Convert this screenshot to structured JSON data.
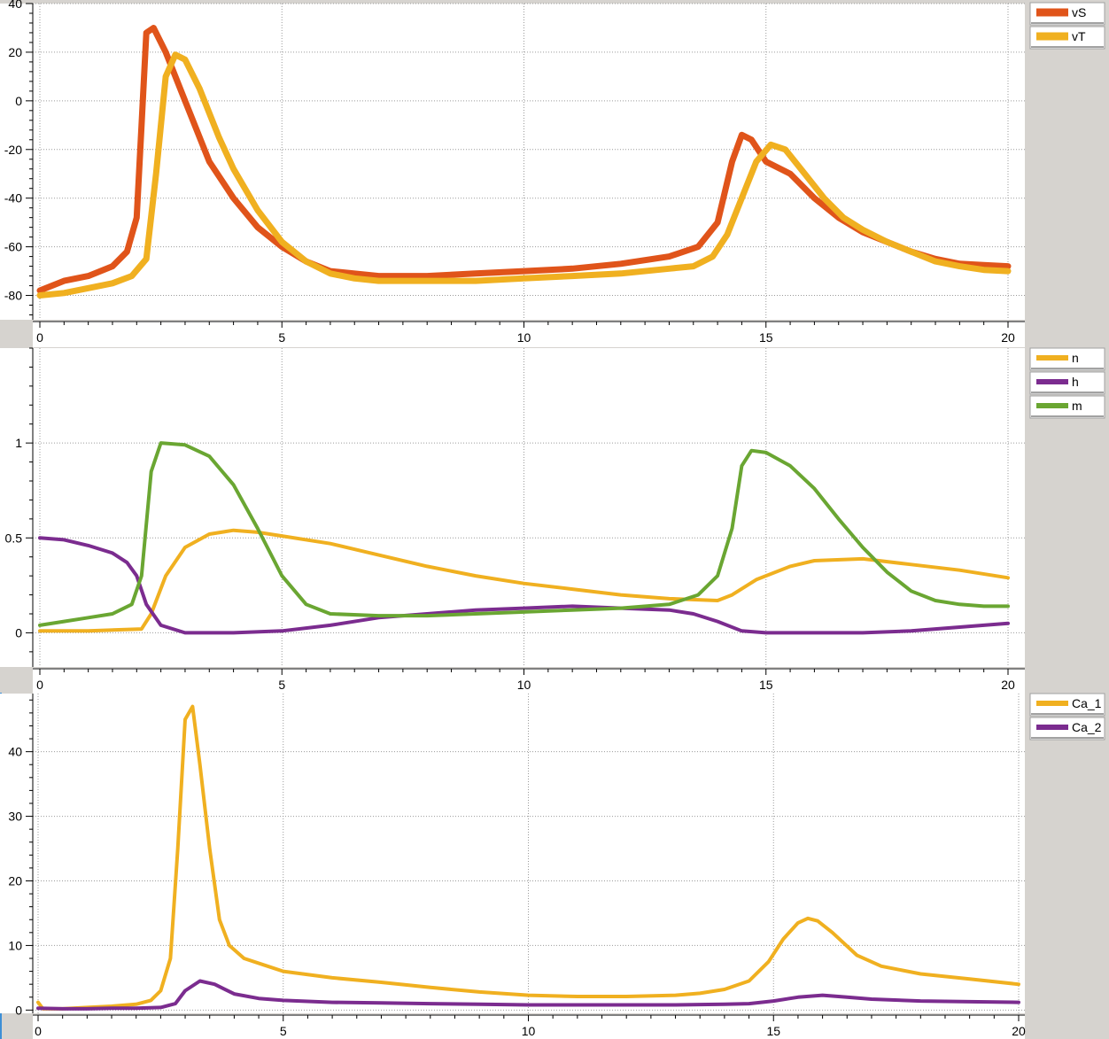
{
  "chart_data": [
    {
      "type": "line",
      "title": "",
      "xlabel": "",
      "ylabel": "",
      "xlim": [
        0,
        20
      ],
      "ylim": [
        -90,
        40
      ],
      "x_ticks": [
        0,
        5,
        10,
        15,
        20
      ],
      "y_ticks": [
        -80,
        -60,
        -40,
        -20,
        0,
        20,
        40
      ],
      "grid": true,
      "legend_position": "top-right",
      "series": [
        {
          "name": "vS",
          "color": "#e0541a",
          "points": [
            [
              0,
              -78
            ],
            [
              0.5,
              -74
            ],
            [
              1,
              -72
            ],
            [
              1.5,
              -68
            ],
            [
              1.8,
              -62
            ],
            [
              2.0,
              -48
            ],
            [
              2.1,
              -10
            ],
            [
              2.2,
              28
            ],
            [
              2.35,
              30
            ],
            [
              2.6,
              20
            ],
            [
              3.0,
              0
            ],
            [
              3.5,
              -25
            ],
            [
              4.0,
              -40
            ],
            [
              4.5,
              -52
            ],
            [
              5,
              -60
            ],
            [
              5.5,
              -66
            ],
            [
              6,
              -70
            ],
            [
              7,
              -72
            ],
            [
              8,
              -72
            ],
            [
              9,
              -71
            ],
            [
              10,
              -70
            ],
            [
              11,
              -69
            ],
            [
              12,
              -67
            ],
            [
              13,
              -64
            ],
            [
              13.6,
              -60
            ],
            [
              14.0,
              -50
            ],
            [
              14.3,
              -25
            ],
            [
              14.5,
              -14
            ],
            [
              14.7,
              -16
            ],
            [
              15.0,
              -25
            ],
            [
              15.5,
              -30
            ],
            [
              16,
              -40
            ],
            [
              16.5,
              -48
            ],
            [
              17,
              -54
            ],
            [
              17.5,
              -58
            ],
            [
              18,
              -62
            ],
            [
              18.5,
              -65
            ],
            [
              19,
              -67
            ],
            [
              19.5,
              -67.5
            ],
            [
              20,
              -68
            ]
          ]
        },
        {
          "name": "vT",
          "color": "#f0b020",
          "points": [
            [
              0,
              -80
            ],
            [
              0.5,
              -79
            ],
            [
              1,
              -77
            ],
            [
              1.5,
              -75
            ],
            [
              1.9,
              -72
            ],
            [
              2.2,
              -65
            ],
            [
              2.4,
              -30
            ],
            [
              2.6,
              10
            ],
            [
              2.8,
              19
            ],
            [
              3.0,
              17
            ],
            [
              3.3,
              5
            ],
            [
              3.7,
              -15
            ],
            [
              4.0,
              -28
            ],
            [
              4.5,
              -45
            ],
            [
              5,
              -58
            ],
            [
              5.5,
              -66
            ],
            [
              6,
              -71
            ],
            [
              6.5,
              -73
            ],
            [
              7,
              -74
            ],
            [
              8,
              -74
            ],
            [
              9,
              -74
            ],
            [
              10,
              -73
            ],
            [
              11,
              -72
            ],
            [
              12,
              -71
            ],
            [
              13,
              -69
            ],
            [
              13.5,
              -68
            ],
            [
              13.9,
              -64
            ],
            [
              14.2,
              -55
            ],
            [
              14.5,
              -40
            ],
            [
              14.8,
              -25
            ],
            [
              15.1,
              -18
            ],
            [
              15.4,
              -20
            ],
            [
              15.8,
              -30
            ],
            [
              16.2,
              -40
            ],
            [
              16.6,
              -48
            ],
            [
              17,
              -53
            ],
            [
              17.5,
              -58
            ],
            [
              18,
              -62
            ],
            [
              18.5,
              -66
            ],
            [
              19,
              -68
            ],
            [
              19.5,
              -69.5
            ],
            [
              20,
              -70
            ]
          ]
        }
      ]
    },
    {
      "type": "line",
      "title": "",
      "xlabel": "",
      "ylabel": "",
      "xlim": [
        0,
        20
      ],
      "ylim": [
        -0.18,
        1.5
      ],
      "x_ticks": [
        0,
        5,
        10,
        15,
        20
      ],
      "y_ticks": [
        0,
        0.5,
        1
      ],
      "y_tick_labels": [
        "0",
        "0.5",
        "1"
      ],
      "grid": true,
      "legend_position": "top-right",
      "series": [
        {
          "name": "n",
          "color": "#f0b020",
          "points": [
            [
              0,
              0.01
            ],
            [
              1,
              0.01
            ],
            [
              2.1,
              0.02
            ],
            [
              2.3,
              0.1
            ],
            [
              2.6,
              0.3
            ],
            [
              3.0,
              0.45
            ],
            [
              3.5,
              0.52
            ],
            [
              4,
              0.54
            ],
            [
              4.5,
              0.53
            ],
            [
              5,
              0.51
            ],
            [
              6,
              0.47
            ],
            [
              7,
              0.41
            ],
            [
              8,
              0.35
            ],
            [
              9,
              0.3
            ],
            [
              10,
              0.26
            ],
            [
              11,
              0.23
            ],
            [
              12,
              0.2
            ],
            [
              13,
              0.18
            ],
            [
              14,
              0.17
            ],
            [
              14.3,
              0.2
            ],
            [
              14.8,
              0.28
            ],
            [
              15.5,
              0.35
            ],
            [
              16,
              0.38
            ],
            [
              17,
              0.39
            ],
            [
              18,
              0.36
            ],
            [
              19,
              0.33
            ],
            [
              20,
              0.29
            ]
          ]
        },
        {
          "name": "h",
          "color": "#7b2c8f",
          "points": [
            [
              0,
              0.5
            ],
            [
              0.5,
              0.49
            ],
            [
              1,
              0.46
            ],
            [
              1.5,
              0.42
            ],
            [
              1.8,
              0.37
            ],
            [
              2.0,
              0.3
            ],
            [
              2.2,
              0.15
            ],
            [
              2.5,
              0.04
            ],
            [
              3,
              0.0
            ],
            [
              4,
              0.0
            ],
            [
              5,
              0.01
            ],
            [
              6,
              0.04
            ],
            [
              7,
              0.08
            ],
            [
              8,
              0.1
            ],
            [
              9,
              0.12
            ],
            [
              10,
              0.13
            ],
            [
              11,
              0.14
            ],
            [
              12,
              0.13
            ],
            [
              13,
              0.12
            ],
            [
              13.5,
              0.1
            ],
            [
              14,
              0.06
            ],
            [
              14.5,
              0.01
            ],
            [
              15,
              0.0
            ],
            [
              16,
              0.0
            ],
            [
              17,
              0.0
            ],
            [
              18,
              0.01
            ],
            [
              19,
              0.03
            ],
            [
              20,
              0.05
            ]
          ]
        },
        {
          "name": "m",
          "color": "#6aa632",
          "points": [
            [
              0,
              0.04
            ],
            [
              0.5,
              0.06
            ],
            [
              1,
              0.08
            ],
            [
              1.5,
              0.1
            ],
            [
              1.9,
              0.15
            ],
            [
              2.1,
              0.3
            ],
            [
              2.3,
              0.85
            ],
            [
              2.5,
              1.0
            ],
            [
              3,
              0.99
            ],
            [
              3.5,
              0.93
            ],
            [
              4,
              0.78
            ],
            [
              4.5,
              0.55
            ],
            [
              5,
              0.3
            ],
            [
              5.5,
              0.15
            ],
            [
              6,
              0.1
            ],
            [
              7,
              0.09
            ],
            [
              8,
              0.09
            ],
            [
              9,
              0.1
            ],
            [
              10,
              0.11
            ],
            [
              11,
              0.12
            ],
            [
              12,
              0.13
            ],
            [
              13,
              0.15
            ],
            [
              13.6,
              0.2
            ],
            [
              14,
              0.3
            ],
            [
              14.3,
              0.55
            ],
            [
              14.5,
              0.88
            ],
            [
              14.7,
              0.96
            ],
            [
              15,
              0.95
            ],
            [
              15.5,
              0.88
            ],
            [
              16,
              0.76
            ],
            [
              16.5,
              0.6
            ],
            [
              17,
              0.45
            ],
            [
              17.5,
              0.32
            ],
            [
              18,
              0.22
            ],
            [
              18.5,
              0.17
            ],
            [
              19,
              0.15
            ],
            [
              19.5,
              0.14
            ],
            [
              20,
              0.14
            ]
          ]
        }
      ]
    },
    {
      "type": "line",
      "title": "",
      "xlabel": "",
      "ylabel": "",
      "xlim": [
        0,
        20
      ],
      "ylim": [
        -0.5,
        49
      ],
      "x_ticks": [
        0,
        5,
        10,
        15,
        20
      ],
      "y_ticks": [
        0,
        10,
        20,
        30,
        40
      ],
      "grid": true,
      "legend_position": "top-right",
      "series": [
        {
          "name": "Ca_1",
          "color": "#f0b020",
          "points": [
            [
              0,
              1.2
            ],
            [
              0.1,
              0.2
            ],
            [
              0.5,
              0.2
            ],
            [
              1,
              0.4
            ],
            [
              1.5,
              0.6
            ],
            [
              2,
              0.9
            ],
            [
              2.3,
              1.5
            ],
            [
              2.5,
              3
            ],
            [
              2.7,
              8
            ],
            [
              2.85,
              25
            ],
            [
              3.0,
              45
            ],
            [
              3.15,
              47
            ],
            [
              3.3,
              38
            ],
            [
              3.5,
              25
            ],
            [
              3.7,
              14
            ],
            [
              3.9,
              10
            ],
            [
              4.2,
              8
            ],
            [
              4.6,
              7
            ],
            [
              5,
              6
            ],
            [
              6,
              5
            ],
            [
              7,
              4.3
            ],
            [
              8,
              3.5
            ],
            [
              9,
              2.8
            ],
            [
              10,
              2.3
            ],
            [
              11,
              2.1
            ],
            [
              12,
              2.1
            ],
            [
              13,
              2.3
            ],
            [
              13.5,
              2.6
            ],
            [
              14,
              3.2
            ],
            [
              14.5,
              4.5
            ],
            [
              14.9,
              7.5
            ],
            [
              15.2,
              11
            ],
            [
              15.5,
              13.5
            ],
            [
              15.7,
              14.2
            ],
            [
              15.9,
              13.8
            ],
            [
              16.2,
              12
            ],
            [
              16.7,
              8.5
            ],
            [
              17.2,
              6.8
            ],
            [
              18,
              5.6
            ],
            [
              19,
              4.8
            ],
            [
              20,
              4.0
            ]
          ]
        },
        {
          "name": "Ca_2",
          "color": "#7b2c8f",
          "points": [
            [
              0,
              0.3
            ],
            [
              0.5,
              0.2
            ],
            [
              1,
              0.2
            ],
            [
              1.5,
              0.3
            ],
            [
              2,
              0.3
            ],
            [
              2.5,
              0.4
            ],
            [
              2.8,
              1.0
            ],
            [
              3.0,
              3.0
            ],
            [
              3.3,
              4.5
            ],
            [
              3.6,
              4.0
            ],
            [
              4,
              2.5
            ],
            [
              4.5,
              1.8
            ],
            [
              5,
              1.5
            ],
            [
              6,
              1.2
            ],
            [
              7,
              1.1
            ],
            [
              8,
              1.0
            ],
            [
              9,
              0.9
            ],
            [
              10,
              0.8
            ],
            [
              11,
              0.8
            ],
            [
              12,
              0.8
            ],
            [
              13,
              0.8
            ],
            [
              14,
              0.9
            ],
            [
              14.5,
              1.0
            ],
            [
              15,
              1.4
            ],
            [
              15.5,
              2.0
            ],
            [
              16,
              2.3
            ],
            [
              16.5,
              2.0
            ],
            [
              17,
              1.7
            ],
            [
              18,
              1.4
            ],
            [
              19,
              1.3
            ],
            [
              20,
              1.2
            ]
          ]
        }
      ]
    }
  ]
}
